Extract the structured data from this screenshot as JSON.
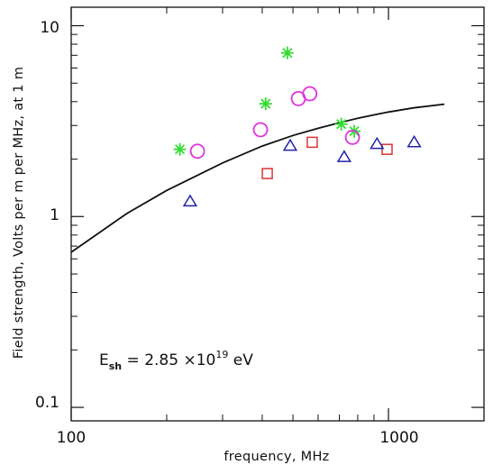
{
  "chart_data": {
    "type": "scatter",
    "title": "",
    "xlabel": "frequency, MHz",
    "ylabel": "Field strength, Volts per m per MHz, at 1 m",
    "xscale": "log",
    "yscale": "log",
    "xlim": [
      100,
      2000
    ],
    "ylim": [
      0.085,
      12.5
    ],
    "x_tick_labels": [
      "100",
      "1000"
    ],
    "y_tick_labels": [
      "0.1",
      "1",
      "10"
    ],
    "grid": false,
    "legend": "none",
    "annotation": {
      "e": "E",
      "sub": "sh",
      "eq": " = 2.85 ×10",
      "sup": "19",
      "unit": " eV"
    },
    "series": [
      {
        "marker": "star",
        "color": "#33dd33",
        "points": [
          [
            220,
            2.25
          ],
          [
            410,
            3.9
          ],
          [
            480,
            7.2
          ],
          [
            710,
            3.05
          ],
          [
            780,
            2.8
          ]
        ]
      },
      {
        "marker": "circle",
        "color": "#dd33dd",
        "points": [
          [
            250,
            2.2
          ],
          [
            395,
            2.85
          ],
          [
            520,
            4.15
          ],
          [
            565,
            4.4
          ],
          [
            770,
            2.6
          ]
        ]
      },
      {
        "marker": "square",
        "color": "#dd3333",
        "points": [
          [
            415,
            1.68
          ],
          [
            575,
            2.45
          ],
          [
            990,
            2.25
          ]
        ]
      },
      {
        "marker": "triangle",
        "color": "#2222aa",
        "points": [
          [
            237,
            1.2
          ],
          [
            490,
            2.35
          ],
          [
            725,
            2.05
          ],
          [
            920,
            2.4
          ],
          [
            1205,
            2.45
          ]
        ]
      },
      {
        "marker": "line",
        "color": "#111111",
        "points": [
          [
            100,
            0.65
          ],
          [
            150,
            1.04
          ],
          [
            200,
            1.37
          ],
          [
            300,
            1.91
          ],
          [
            400,
            2.34
          ],
          [
            500,
            2.66
          ],
          [
            600,
            2.9
          ],
          [
            700,
            3.1
          ],
          [
            800,
            3.27
          ],
          [
            900,
            3.41
          ],
          [
            1000,
            3.53
          ],
          [
            1200,
            3.71
          ],
          [
            1500,
            3.88
          ]
        ]
      }
    ]
  }
}
